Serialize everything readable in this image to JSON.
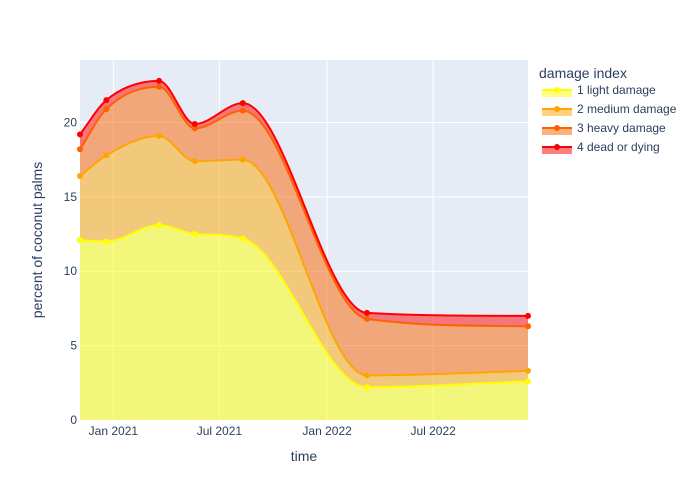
{
  "chart_data": {
    "type": "area",
    "stacked": true,
    "x_type": "date",
    "x": [
      "2020-11-05",
      "2020-12-20",
      "2021-03-20",
      "2021-05-20",
      "2021-08-10",
      "2022-03-10",
      "2022-12-10"
    ],
    "series": [
      {
        "name": "1 light damage",
        "values": [
          12.1,
          12.0,
          13.1,
          12.5,
          12.2,
          2.2,
          2.6
        ],
        "color": "#ffff00",
        "fill": "rgba(255,255,0,0.5)"
      },
      {
        "name": "2 medium damage",
        "values": [
          16.4,
          17.8,
          19.1,
          17.4,
          17.5,
          3.0,
          3.3
        ],
        "color": "#ffa500",
        "fill": "rgba(255,165,0,0.5)"
      },
      {
        "name": "3 heavy damage",
        "values": [
          18.2,
          20.9,
          22.4,
          19.6,
          20.8,
          6.8,
          6.3
        ],
        "color": "#ff6100",
        "fill": "rgba(255,97,0,0.5)"
      },
      {
        "name": "4 dead or dying",
        "values": [
          19.2,
          21.5,
          22.8,
          19.9,
          21.3,
          7.2,
          7.0
        ],
        "color": "#ff0000",
        "fill": "rgba(255,0,0,0.5)"
      }
    ],
    "xlim": [
      "2020-11-05",
      "2022-12-10"
    ],
    "ylim": [
      0,
      24.2
    ],
    "x_ticks": [
      {
        "date": "2021-01-01",
        "label": "Jan 2021"
      },
      {
        "date": "2021-07-01",
        "label": "Jul 2021"
      },
      {
        "date": "2022-01-01",
        "label": "Jan 2022"
      },
      {
        "date": "2022-07-01",
        "label": "Jul 2022"
      }
    ],
    "y_ticks": [
      0,
      5,
      10,
      15,
      20
    ],
    "xlabel": "time",
    "ylabel": "percent of coconut palms",
    "legend_title": "damage index",
    "legend_position": "top-right",
    "grid": true,
    "plot_bg": "#e5ecf6",
    "text_color": "#2a3f5f"
  }
}
